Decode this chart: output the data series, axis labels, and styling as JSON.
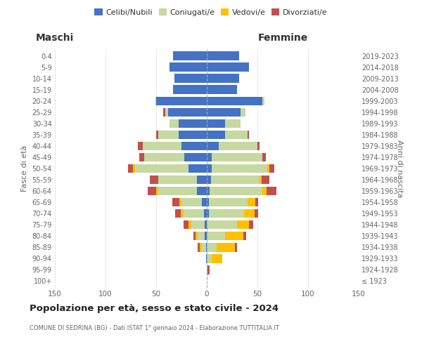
{
  "age_groups": [
    "100+",
    "95-99",
    "90-94",
    "85-89",
    "80-84",
    "75-79",
    "70-74",
    "65-69",
    "60-64",
    "55-59",
    "50-54",
    "45-49",
    "40-44",
    "35-39",
    "30-34",
    "25-29",
    "20-24",
    "15-19",
    "10-14",
    "5-9",
    "0-4"
  ],
  "birth_years": [
    "≤ 1923",
    "1924-1928",
    "1929-1933",
    "1934-1938",
    "1939-1943",
    "1944-1948",
    "1949-1953",
    "1954-1958",
    "1959-1963",
    "1964-1968",
    "1969-1973",
    "1974-1978",
    "1979-1983",
    "1984-1988",
    "1989-1993",
    "1994-1998",
    "1999-2003",
    "2004-2008",
    "2009-2013",
    "2014-2018",
    "2019-2023"
  ],
  "maschi": {
    "celibi": [
      0,
      0,
      1,
      1,
      2,
      2,
      3,
      5,
      10,
      10,
      18,
      22,
      25,
      28,
      28,
      38,
      50,
      33,
      32,
      37,
      33
    ],
    "coniugati": [
      0,
      0,
      0,
      4,
      7,
      13,
      20,
      20,
      38,
      38,
      53,
      40,
      38,
      20,
      9,
      3,
      1,
      0,
      0,
      0,
      0
    ],
    "vedovi": [
      0,
      0,
      0,
      2,
      2,
      3,
      3,
      2,
      2,
      0,
      2,
      0,
      0,
      0,
      0,
      0,
      0,
      0,
      0,
      0,
      0
    ],
    "divorziati": [
      0,
      0,
      0,
      2,
      2,
      5,
      5,
      7,
      8,
      8,
      5,
      5,
      5,
      2,
      0,
      2,
      0,
      0,
      0,
      0,
      0
    ]
  },
  "femmine": {
    "nubili": [
      0,
      0,
      0,
      0,
      0,
      0,
      2,
      2,
      3,
      4,
      5,
      5,
      12,
      18,
      18,
      33,
      55,
      30,
      32,
      42,
      32
    ],
    "coniugate": [
      0,
      1,
      5,
      10,
      18,
      30,
      35,
      38,
      52,
      48,
      55,
      50,
      38,
      22,
      15,
      5,
      2,
      0,
      0,
      0,
      0
    ],
    "vedove": [
      0,
      0,
      10,
      18,
      18,
      12,
      10,
      8,
      4,
      2,
      2,
      0,
      0,
      0,
      0,
      0,
      0,
      0,
      0,
      0,
      0
    ],
    "divorziate": [
      0,
      2,
      0,
      2,
      3,
      4,
      4,
      3,
      10,
      8,
      5,
      3,
      2,
      2,
      0,
      0,
      0,
      0,
      0,
      0,
      0
    ]
  },
  "colors": {
    "celibi": "#4472c4",
    "coniugati": "#c5d9a0",
    "vedovi": "#ffc000",
    "divorziati": "#c0504d"
  },
  "xlim": 150,
  "title": "Popolazione per età, sesso e stato civile - 2024",
  "subtitle": "COMUNE DI SEDRINA (BG) - Dati ISTAT 1° gennaio 2024 - Elaborazione TUTTITALIA.IT",
  "ylabel_left": "Fasce di età",
  "ylabel_right": "Anni di nascita",
  "xlabel_maschi": "Maschi",
  "xlabel_femmine": "Femmine",
  "legend_labels": [
    "Celibi/Nubili",
    "Coniugati/e",
    "Vedovi/e",
    "Divorziati/e"
  ],
  "background_color": "#ffffff",
  "grid_color": "#dddddd"
}
